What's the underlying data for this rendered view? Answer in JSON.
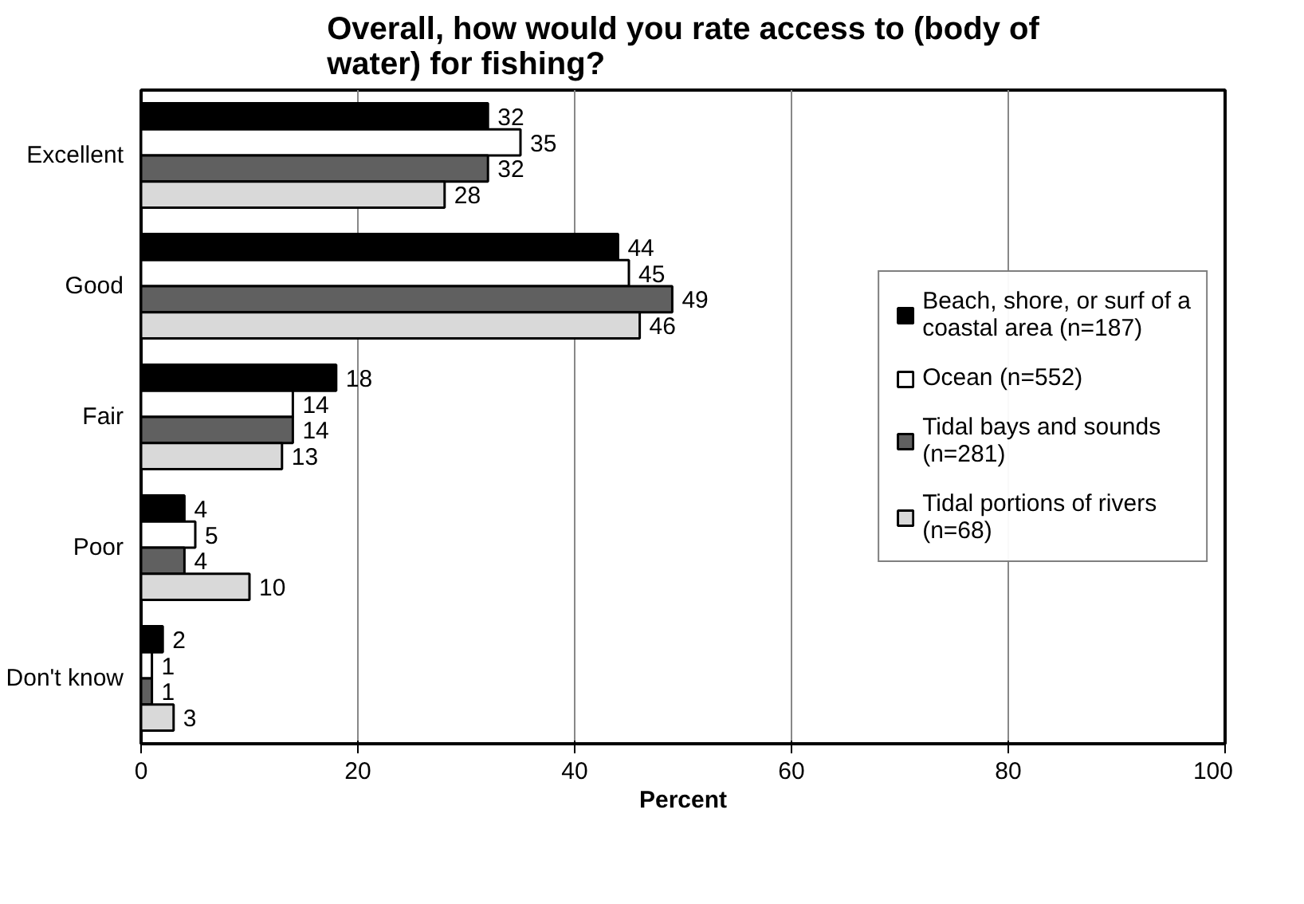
{
  "chart_data": {
    "type": "bar",
    "orientation": "horizontal",
    "title": "Overall, how would you rate access to (body of water) for fishing?",
    "xlabel": "Percent",
    "categories": [
      "Excellent",
      "Good",
      "Fair",
      "Poor",
      "Don't know"
    ],
    "series": [
      {
        "name": "Beach, shore, or surf of a coastal area (n=187)",
        "color": "#000000",
        "values": [
          32,
          44,
          18,
          4,
          2
        ]
      },
      {
        "name": "Ocean (n=552)",
        "color": "#ffffff",
        "values": [
          35,
          45,
          14,
          5,
          1
        ]
      },
      {
        "name": "Tidal bays and sounds (n=281)",
        "color": "#606060",
        "values": [
          32,
          49,
          14,
          4,
          1
        ]
      },
      {
        "name": "Tidal portions of rivers (n=68)",
        "color": "#d9d9d9",
        "values": [
          28,
          46,
          13,
          10,
          3
        ]
      }
    ],
    "xlim": [
      0,
      100
    ],
    "xticks": [
      0,
      20,
      40,
      60,
      80,
      100
    ],
    "grid": "x",
    "legend": "right",
    "data_labels": true
  }
}
